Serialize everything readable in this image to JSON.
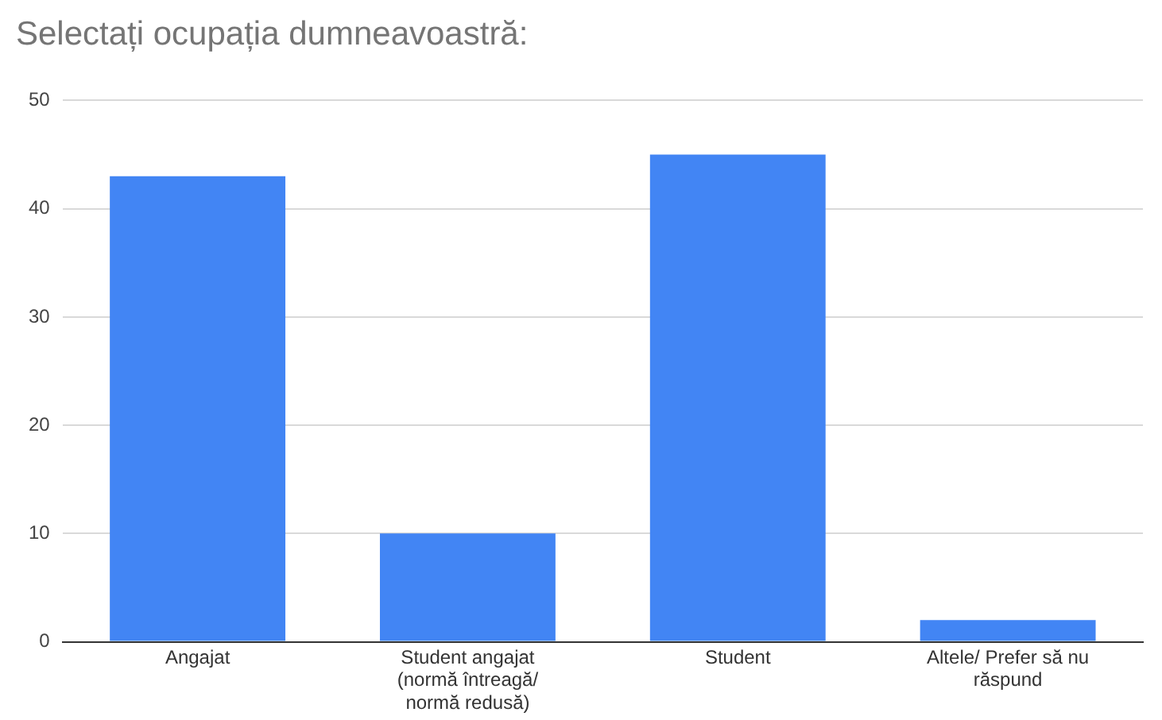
{
  "chart_data": {
    "type": "bar",
    "title": "Selectați ocupația dumneavoastră:",
    "categories": [
      "Angajat",
      "Student angajat (normă întreagă/ normă redusă)",
      "Student",
      "Altele/ Prefer să nu răspund"
    ],
    "values": [
      43,
      10,
      45,
      2
    ],
    "color": "#4285f4",
    "ylim": [
      0,
      50
    ],
    "yticks": [
      0,
      10,
      20,
      30,
      40,
      50
    ],
    "grid": "y"
  }
}
